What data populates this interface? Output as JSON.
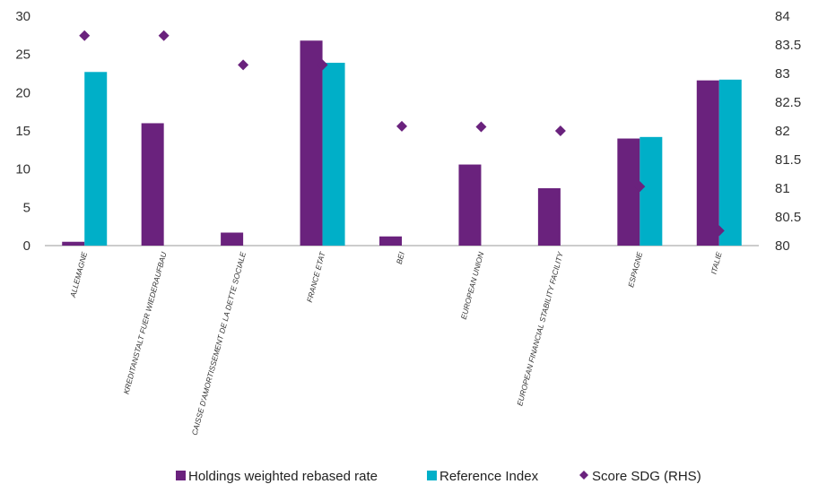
{
  "chart_data": {
    "type": "bar",
    "categories": [
      "ALLEMAGNE",
      "KREDITANSTALT FUER WIEDERAUFBAU",
      "CAISSE D'AMORTISSEMENT DE LA DETTE SOCIALE",
      "FRANCE ETAT",
      "BEI",
      "EUROPEAN UNION",
      "EUROPEAN FINANCIAL STABILITY FACILITY",
      "ESPAGNE",
      "ITALIE"
    ],
    "series": [
      {
        "name": "Holdings weighted rebased rate",
        "kind": "bar",
        "axis": "left",
        "color": "#6a227d",
        "values": [
          0.5,
          16.0,
          1.7,
          26.8,
          1.2,
          10.6,
          7.5,
          14.0,
          21.6
        ]
      },
      {
        "name": "Reference Index",
        "kind": "bar",
        "axis": "left",
        "color": "#00afc8",
        "values": [
          22.7,
          null,
          null,
          23.9,
          null,
          null,
          null,
          14.2,
          21.7
        ]
      },
      {
        "name": "Score SDG (RHS)",
        "kind": "scatter",
        "marker": "diamond",
        "axis": "right",
        "color": "#6a227d",
        "values": [
          83.66,
          83.66,
          83.15,
          83.15,
          82.08,
          82.07,
          82.0,
          81.03,
          80.26
        ]
      }
    ],
    "ylim_left": [
      0,
      30
    ],
    "yticks_left": [
      "0",
      "5",
      "10",
      "15",
      "20",
      "25",
      "30"
    ],
    "ylim_right": [
      80,
      84
    ],
    "yticks_right": [
      "80",
      "80.5",
      "81",
      "81.5",
      "82",
      "82.5",
      "83",
      "83.5",
      "84"
    ],
    "legend_position": "bottom",
    "grid": false
  }
}
